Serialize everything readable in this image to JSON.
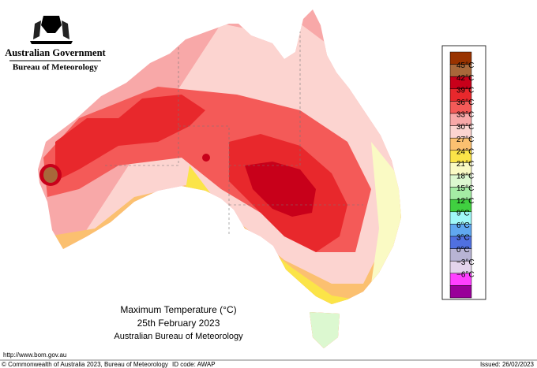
{
  "header": {
    "government": "Australian Government",
    "bureau": "Bureau of Meteorology"
  },
  "title": {
    "line1": "Maximum Temperature (°C)",
    "line2": "25th February 2023",
    "line3": "Australian Bureau of Meteorology"
  },
  "legend": {
    "swatches": [
      "#993300",
      "#a8683a",
      "#c8001a",
      "#e8282c",
      "#f45a58",
      "#f8a8a8",
      "#fcd4d0",
      "#fbc070",
      "#fbe448",
      "#fafac4",
      "#dcf8d0",
      "#a4eca4",
      "#40d040",
      "#a0f8f8",
      "#60a8f0",
      "#5070e0",
      "#b8b4d4",
      "#e4d4ec",
      "#ff40ff",
      "#990099"
    ],
    "labels": [
      "45°C",
      "42°C",
      "39°C",
      "36°C",
      "33°C",
      "30°C",
      "27°C",
      "24°C",
      "21°C",
      "18°C",
      "15°C",
      "12°C",
      "9°C",
      "6°C",
      "3°C",
      "0°C",
      "−3°C",
      "−6°C"
    ]
  },
  "footer": {
    "url": "http://www.bom.gov.au",
    "copyright": "© Commonwealth of Australia 2023, Bureau of Meteorology",
    "id_code": "ID code: AWAP",
    "issued": "Issued: 26/02/2023"
  }
}
